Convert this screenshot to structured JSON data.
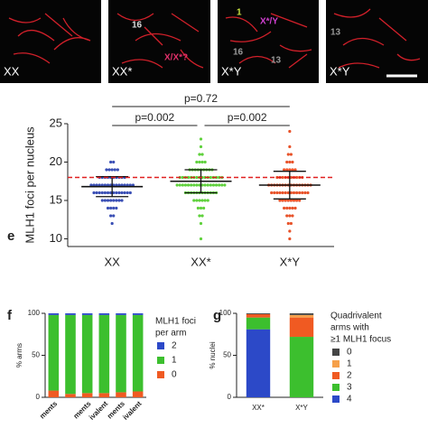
{
  "images": [
    {
      "label": "XX",
      "annotations": []
    },
    {
      "label": "XX*",
      "annotations": [
        {
          "text": "16",
          "color": "#dddddd"
        },
        {
          "text": "X/X*?",
          "color": "#e0306a"
        }
      ]
    },
    {
      "label": "X*Y",
      "annotations": [
        {
          "text": "1",
          "color": "#c8e040"
        },
        {
          "text": "X*/Y",
          "color": "#d040d0"
        },
        {
          "text": "16",
          "color": "#999999"
        },
        {
          "text": "13",
          "color": "#999999"
        }
      ]
    },
    {
      "label": "X*Y",
      "annotations": [
        {
          "text": "13",
          "color": "#999999"
        }
      ]
    }
  ],
  "chart_data": [
    {
      "type": "dotplot",
      "panel": "e",
      "ylabel": "MLH1 foci per nucleus",
      "categories": [
        "XX",
        "XX*",
        "X*Y"
      ],
      "colors": [
        "#3a4fb5",
        "#5fd13c",
        "#e8532a"
      ],
      "values": [
        [
          12,
          13,
          13,
          14,
          14,
          14,
          14,
          15,
          15,
          15,
          15,
          15,
          15,
          15,
          15,
          16,
          16,
          16,
          16,
          16,
          16,
          16,
          16,
          16,
          16,
          16,
          16,
          16,
          16,
          17,
          17,
          17,
          17,
          17,
          17,
          17,
          17,
          17,
          17,
          17,
          17,
          17,
          17,
          17,
          17,
          18,
          18,
          18,
          18,
          18,
          18,
          18,
          18,
          18,
          18,
          19,
          19,
          19,
          19,
          19,
          20,
          20
        ],
        [
          10,
          12,
          13,
          13,
          14,
          14,
          14,
          15,
          15,
          15,
          15,
          15,
          15,
          16,
          16,
          16,
          16,
          16,
          16,
          16,
          16,
          16,
          16,
          16,
          16,
          17,
          17,
          17,
          17,
          17,
          17,
          17,
          17,
          17,
          17,
          17,
          17,
          17,
          17,
          17,
          17,
          17,
          17,
          18,
          18,
          18,
          18,
          18,
          18,
          18,
          18,
          18,
          18,
          18,
          18,
          18,
          18,
          18,
          18,
          19,
          19,
          19,
          19,
          19,
          19,
          19,
          19,
          19,
          20,
          20,
          20,
          20,
          21,
          21,
          22,
          23
        ],
        [
          10,
          11,
          12,
          12,
          13,
          13,
          13,
          14,
          14,
          14,
          14,
          14,
          15,
          15,
          15,
          15,
          15,
          15,
          15,
          15,
          16,
          16,
          16,
          16,
          16,
          16,
          16,
          16,
          16,
          16,
          16,
          16,
          16,
          16,
          17,
          17,
          17,
          17,
          17,
          17,
          17,
          17,
          17,
          17,
          17,
          17,
          17,
          17,
          17,
          17,
          18,
          18,
          18,
          18,
          18,
          18,
          18,
          18,
          18,
          18,
          19,
          19,
          19,
          19,
          19,
          20,
          20,
          20,
          21,
          21,
          22,
          24
        ]
      ],
      "means": [
        16.8,
        17.5,
        17.0
      ],
      "sd": [
        1.3,
        1.5,
        1.8
      ],
      "reference_line": 18,
      "reference_color": "#e02020",
      "ylim": [
        9,
        25
      ],
      "yticks": [
        10,
        15,
        20,
        25
      ],
      "comparisons": [
        {
          "label": "p=0.72",
          "from": 0,
          "to": 2
        },
        {
          "label": "p=0.002",
          "from": 0,
          "to": 1
        },
        {
          "label": "p=0.002",
          "from": 1,
          "to": 2
        }
      ]
    },
    {
      "type": "stacked_bar",
      "panel": "f",
      "ylabel": "% arms",
      "categories": [
        "ments",
        null,
        "ments",
        "ivalent",
        "ments",
        "ivalent"
      ],
      "legend_title": [
        "MLH1 foci",
        "per arm"
      ],
      "series": [
        {
          "name": "0",
          "color": "#f05a22",
          "values": [
            8,
            4,
            5,
            5,
            6,
            7
          ]
        },
        {
          "name": "1",
          "color": "#3cbf2e",
          "values": [
            90,
            94,
            93,
            93,
            92,
            91
          ]
        },
        {
          "name": "2",
          "color": "#2c49c8",
          "values": [
            2,
            2,
            2,
            2,
            2,
            2
          ]
        }
      ],
      "ylim": [
        0,
        100
      ],
      "yticks": [
        0,
        50,
        100
      ]
    },
    {
      "type": "stacked_bar",
      "panel": "g",
      "ylabel": "% nuclei",
      "categories": [
        "XX*",
        "X*Y"
      ],
      "legend_title": [
        "Quadrivalent",
        "arms with",
        "≥1 MLH1 focus"
      ],
      "series": [
        {
          "name": "4",
          "color": "#2c49c8",
          "values": [
            81,
            0
          ]
        },
        {
          "name": "3",
          "color": "#3cbf2e",
          "values": [
            14,
            72
          ]
        },
        {
          "name": "2",
          "color": "#f05a22",
          "values": [
            4,
            23
          ]
        },
        {
          "name": "1",
          "color": "#f6a04a",
          "values": [
            0,
            3
          ]
        },
        {
          "name": "0",
          "color": "#444444",
          "values": [
            1,
            2
          ]
        }
      ],
      "ylim": [
        0,
        100
      ],
      "yticks": [
        0,
        50,
        100
      ]
    }
  ]
}
